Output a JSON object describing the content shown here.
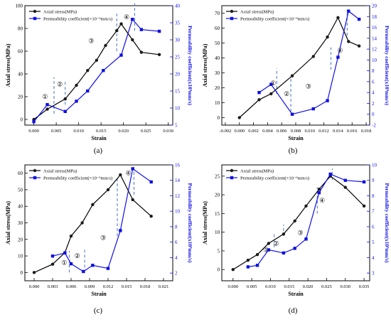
{
  "colors": {
    "stress": "#000000",
    "perm": "#1010e6",
    "dash": "#4472c4",
    "marker": "#1a1a1a"
  },
  "chart_data": [
    {
      "type": "line",
      "panel_label": "(a)",
      "xlabel": "Strain",
      "ylabel_left": "Axial stress(MPa)",
      "ylabel_right": "Permeability coefficient(x10⁹mm/s)",
      "xlim": [
        -0.002,
        0.031
      ],
      "ylim_left": [
        -5,
        100
      ],
      "ylim_right": [
        5,
        40
      ],
      "x_ticks": [
        "0.000",
        "0.005",
        "0.010",
        "0.015",
        "0.020",
        "0.025",
        "0.030"
      ],
      "x_tick_values": [
        0,
        0.005,
        0.01,
        0.015,
        0.02,
        0.025,
        0.03
      ],
      "left_ticks": [
        0,
        20,
        40,
        60,
        80,
        100
      ],
      "right_ticks": [
        5,
        10,
        15,
        20,
        25,
        30,
        35,
        40
      ],
      "legend": [
        "Axial stress(MPa)",
        "Permeability coefficient(×10⁻⁹mm/s)"
      ],
      "series": [
        {
          "name": "Axial stress(MPa)",
          "axis": "left",
          "marker": "circle",
          "x": [
            0,
            0.003,
            0.007,
            0.0095,
            0.012,
            0.014,
            0.016,
            0.0185,
            0.0195,
            0.022,
            0.024,
            0.028
          ],
          "y": [
            0,
            9,
            18,
            30,
            43,
            52,
            65,
            78,
            84,
            70,
            59,
            57
          ]
        },
        {
          "name": "Permeability coefficient(×10⁻⁹mm/s)",
          "axis": "right",
          "marker": "square",
          "x": [
            0,
            0.003,
            0.007,
            0.0095,
            0.012,
            0.0155,
            0.0195,
            0.022,
            0.024,
            0.028
          ],
          "y": [
            6,
            11,
            9,
            12,
            15,
            21,
            25.5,
            36,
            33,
            32.5
          ]
        }
      ],
      "dividers": [
        {
          "x": 0.0045,
          "y0": 5,
          "y1": 37
        },
        {
          "x": 0.007,
          "y0": 13,
          "y1": 34
        },
        {
          "x": 0.0185,
          "y0": 60,
          "y1": 93
        },
        {
          "x": 0.0225,
          "y0": 78,
          "y1": 102
        }
      ],
      "stage_labels": [
        {
          "text": "①",
          "x": 0.0025,
          "y": 20
        },
        {
          "text": "②",
          "x": 0.0058,
          "y": 31
        },
        {
          "text": "③",
          "x": 0.0128,
          "y": 69
        },
        {
          "text": "④",
          "x": 0.0207,
          "y": 90
        }
      ]
    },
    {
      "type": "line",
      "panel_label": "(b)",
      "xlabel": "Strain",
      "ylabel_left": "Axial stress(MPa)",
      "ylabel_right": "Permeability coefficient(x10⁹mm/s)",
      "xlim": [
        -0.0025,
        0.0185
      ],
      "ylim_left": [
        -5,
        75
      ],
      "ylim_right": [
        -2,
        20
      ],
      "x_ticks": [
        "-0.002",
        "0.000",
        "0.002",
        "0.004",
        "0.006",
        "0.008",
        "0.010",
        "0.012",
        "0.014",
        "0.016",
        "0.018"
      ],
      "x_tick_values": [
        -0.002,
        0,
        0.002,
        0.004,
        0.006,
        0.008,
        0.01,
        0.012,
        0.014,
        0.016,
        0.018
      ],
      "left_ticks": [
        0,
        10,
        20,
        30,
        40,
        50,
        60,
        70
      ],
      "right_ticks": [
        -2,
        0,
        2,
        4,
        6,
        8,
        10,
        12,
        14,
        16,
        18,
        20
      ],
      "legend": [
        "Axial stress(MPa)",
        "Permeability coefficient(×10⁻⁹mm/s)"
      ],
      "series": [
        {
          "name": "Axial stress(MPa)",
          "axis": "left",
          "marker": "circle",
          "x": [
            0,
            0.0028,
            0.0045,
            0.0075,
            0.0105,
            0.0125,
            0.014,
            0.0155,
            0.017
          ],
          "y": [
            0,
            12,
            16,
            28,
            41,
            54,
            67,
            51,
            48
          ]
        },
        {
          "name": "Permeability coefficient(×10⁻⁹mm/s)",
          "axis": "right",
          "marker": "square",
          "x": [
            0.0028,
            0.0045,
            0.0075,
            0.0105,
            0.0125,
            0.014,
            0.0155,
            0.017
          ],
          "y": [
            4,
            5.5,
            0,
            1,
            2.5,
            10.5,
            19,
            17.5
          ]
        }
      ],
      "dividers": [
        {
          "x": 0.0053,
          "y0": 16,
          "y1": 33
        },
        {
          "x": 0.0073,
          "y0": 4,
          "y1": 26
        },
        {
          "x": 0.013,
          "y0": 32,
          "y1": 47
        },
        {
          "x": 0.0153,
          "y0": 55,
          "y1": 72
        }
      ],
      "stage_labels": [
        {
          "text": "①",
          "x": 0.0048,
          "y": 23
        },
        {
          "text": "②",
          "x": 0.0067,
          "y": 16
        },
        {
          "text": "③",
          "x": 0.0098,
          "y": 21
        },
        {
          "text": "④",
          "x": 0.0143,
          "y": 45
        }
      ]
    },
    {
      "type": "line",
      "panel_label": "(c)",
      "xlabel": "Strain",
      "ylabel_left": "Axial stress(MPa)",
      "ylabel_right": "Permeability coefficient(x10⁹mm/s)",
      "xlim": [
        -0.0015,
        0.0225
      ],
      "ylim_left": [
        -5,
        65
      ],
      "ylim_right": [
        1,
        16
      ],
      "x_ticks": [
        "0.000",
        "0.003",
        "0.006",
        "0.009",
        "0.012",
        "0.015",
        "0.018",
        "0.021"
      ],
      "x_tick_values": [
        0,
        0.003,
        0.006,
        0.009,
        0.012,
        0.015,
        0.018,
        0.021
      ],
      "left_ticks": [
        0,
        10,
        20,
        30,
        40,
        50,
        60
      ],
      "right_ticks": [
        2,
        4,
        6,
        8,
        10,
        12,
        14,
        16
      ],
      "legend": [
        "Axial stress(MPa)",
        "Permeability coefficient(×10⁻⁹mm/s)"
      ],
      "series": [
        {
          "name": "Axial stress(MPa)",
          "axis": "left",
          "marker": "circle",
          "x": [
            0,
            0.003,
            0.005,
            0.006,
            0.0078,
            0.0095,
            0.012,
            0.014,
            0.016,
            0.019
          ],
          "y": [
            0,
            5,
            12,
            22,
            30,
            41,
            50,
            59,
            44,
            34
          ]
        },
        {
          "name": "Permeability coefficient(×10⁻⁹mm/s)",
          "axis": "right",
          "marker": "square",
          "x": [
            0.003,
            0.005,
            0.006,
            0.008,
            0.0095,
            0.012,
            0.014,
            0.016,
            0.019
          ],
          "y": [
            4.2,
            4.6,
            3.2,
            2.2,
            3,
            2.6,
            7.5,
            15.5,
            13.8
          ]
        }
      ],
      "dividers": [
        {
          "x": 0.0057,
          "y0": 0,
          "y1": 13
        },
        {
          "x": 0.0082,
          "y0": 0,
          "y1": 15
        },
        {
          "x": 0.0135,
          "y0": 22,
          "y1": 57
        },
        {
          "x": 0.0162,
          "y0": 47,
          "y1": 64
        }
      ],
      "stage_labels": [
        {
          "text": "①",
          "x": 0.0049,
          "y": 6
        },
        {
          "text": "②",
          "x": 0.007,
          "y": 10
        },
        {
          "text": "③",
          "x": 0.0112,
          "y": 21
        },
        {
          "text": "④",
          "x": 0.0153,
          "y": 60
        }
      ]
    },
    {
      "type": "line",
      "panel_label": "(d)",
      "xlabel": "Strain",
      "ylabel_left": "Axial stress(MPa)",
      "ylabel_right": "Permeability coefficient(x10⁹mm/s)",
      "xlim": [
        -0.003,
        0.0365
      ],
      "ylim_left": [
        -3,
        28
      ],
      "ylim_right": [
        2.5,
        10
      ],
      "x_ticks": [
        "0.000",
        "0.005",
        "0.010",
        "0.015",
        "0.020",
        "0.025",
        "0.030",
        "0.035"
      ],
      "x_tick_values": [
        0,
        0.005,
        0.01,
        0.015,
        0.02,
        0.025,
        0.03,
        0.035
      ],
      "left_ticks": [
        0,
        5,
        10,
        15,
        20,
        25
      ],
      "right_ticks": [
        3,
        4,
        5,
        6,
        7,
        8,
        9,
        10
      ],
      "legend": [
        "Axial stress(MPa)",
        "Permeability coefficient(×10⁻⁹mm/s)"
      ],
      "series": [
        {
          "name": "Axial stress(MPa)",
          "axis": "left",
          "marker": "circle",
          "x": [
            0,
            0.004,
            0.0065,
            0.0095,
            0.0135,
            0.0165,
            0.0195,
            0.023,
            0.026,
            0.03,
            0.035
          ],
          "y": [
            0,
            2.5,
            4,
            7,
            9.5,
            13,
            17,
            21.5,
            25,
            22,
            17
          ]
        },
        {
          "name": "Permeability coefficient(×10⁻⁹mm/s)",
          "axis": "right",
          "marker": "square",
          "x": [
            0.004,
            0.0065,
            0.0095,
            0.0135,
            0.0165,
            0.0195,
            0.023,
            0.026,
            0.03,
            0.035
          ],
          "y": [
            3.4,
            3.5,
            4.5,
            4.3,
            4.6,
            5.2,
            8.2,
            9.4,
            9,
            8.9
          ]
        }
      ],
      "dividers": [
        {
          "x": 0.011,
          "y0": 6,
          "y1": 10
        },
        {
          "x": 0.0135,
          "y0": 9,
          "y1": 12
        },
        {
          "x": 0.0225,
          "y0": 15,
          "y1": 22
        },
        {
          "x": 0.0265,
          "y0": 24,
          "y1": 27
        }
      ],
      "stage_labels": [
        {
          "text": "①",
          "x": 0.0088,
          "y": 5.3
        },
        {
          "text": "②",
          "x": 0.0115,
          "y": 7
        },
        {
          "text": "③",
          "x": 0.018,
          "y": 9.8
        },
        {
          "text": "④",
          "x": 0.0238,
          "y": 18.5
        }
      ]
    }
  ]
}
